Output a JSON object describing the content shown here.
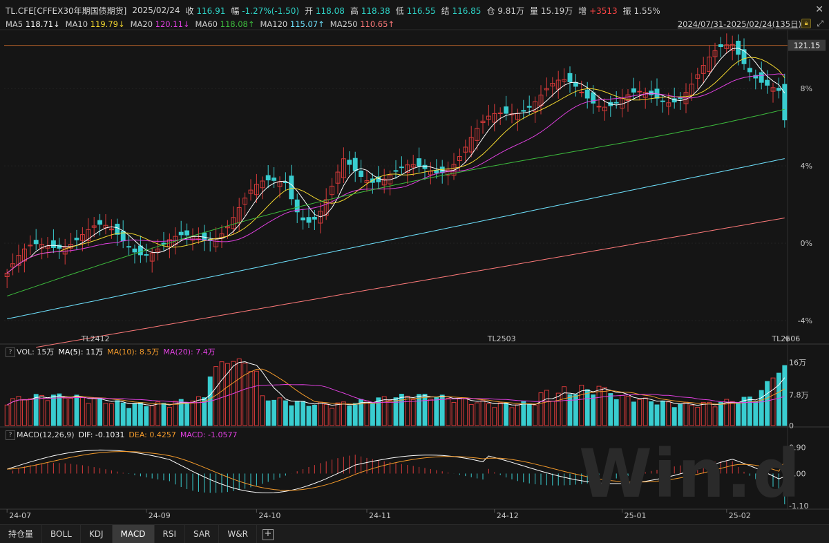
{
  "header": {
    "symbol": "TL.CFE[CFFEX30年期国债期货]",
    "date": "2025/02/24",
    "close_label": "收",
    "close": "116.91",
    "amp_label": "幅",
    "change": "-1.27%(-1.50)",
    "open_label": "开",
    "open": "118.08",
    "high_label": "高",
    "high": "118.38",
    "low_label": "低",
    "low": "116.55",
    "settle_label": "结",
    "settle": "116.85",
    "oi_label": "仓",
    "oi": "9.81万",
    "vol_label": "量",
    "vol": "15.19万",
    "inc_label": "增",
    "inc": "+3513",
    "swing_label": "振",
    "swing": "1.55%"
  },
  "ma_row": {
    "items": [
      {
        "label": "MA5",
        "value": "118.71↓",
        "color": "#ffffff"
      },
      {
        "label": "MA10",
        "value": "119.79↓",
        "color": "#f4d82f"
      },
      {
        "label": "MA20",
        "value": "120.11↓",
        "color": "#e040e0"
      },
      {
        "label": "MA60",
        "value": "118.08↑",
        "color": "#3dbb3d"
      },
      {
        "label": "MA120",
        "value": "115.07↑",
        "color": "#6fe3ff"
      },
      {
        "label": "MA250",
        "value": "110.65↑",
        "color": "#ff7a7a"
      }
    ],
    "range": "2024/07/31-2025/02/24(135日)"
  },
  "price_axis": {
    "hline_label": "121.15",
    "ticks": [
      {
        "label": "8%",
        "y": 8
      },
      {
        "label": "4%",
        "y": 4
      },
      {
        "label": "0%",
        "y": 0
      },
      {
        "label": "-4%",
        "y": -4
      }
    ]
  },
  "contract_labels": [
    "TL2412",
    "TL2503",
    "TL2506"
  ],
  "vol_panel": {
    "title": "VOL: 15万",
    "ma5": "MA(5): 11万",
    "ma10": "MA(10): 8.5万",
    "ma20": "MA(20): 7.4万",
    "ticks": [
      "16万",
      "7.8万",
      "0"
    ]
  },
  "macd_panel": {
    "title": "MACD(12,26,9)",
    "dif": "DIF: -0.1031",
    "dea": "DEA: 0.4257",
    "macd": "MACD: -1.0577",
    "ticks": [
      "0.90",
      "0.00",
      "-1.10"
    ]
  },
  "time_axis": [
    "24-07",
    "24-09",
    "24-10",
    "24-11",
    "24-12",
    "25-01",
    "25-02"
  ],
  "tabs": [
    "持仓量",
    "BOLL",
    "KDJ",
    "MACD",
    "RSI",
    "SAR",
    "W&R"
  ],
  "active_tab": "MACD",
  "watermark": "Win.d",
  "colors": {
    "up": "#d83a3a",
    "down": "#39cdd0",
    "bg": "#151515",
    "ma5": "#ffffff",
    "ma10": "#f4d82f",
    "ma20": "#e040e0",
    "ma60": "#3dbb3d",
    "ma120": "#6fe3ff",
    "ma250": "#ff7a7a",
    "dif": "#ffffff",
    "dea": "#f39a2b"
  },
  "chart_data": {
    "type": "candlestick",
    "series_names": [
      "MA5",
      "MA10",
      "MA20",
      "MA60",
      "MA120",
      "MA250"
    ],
    "last_close": 116.91,
    "prior_close": 118.41,
    "pct_ticks": [
      8,
      4,
      0,
      -4
    ]
  }
}
